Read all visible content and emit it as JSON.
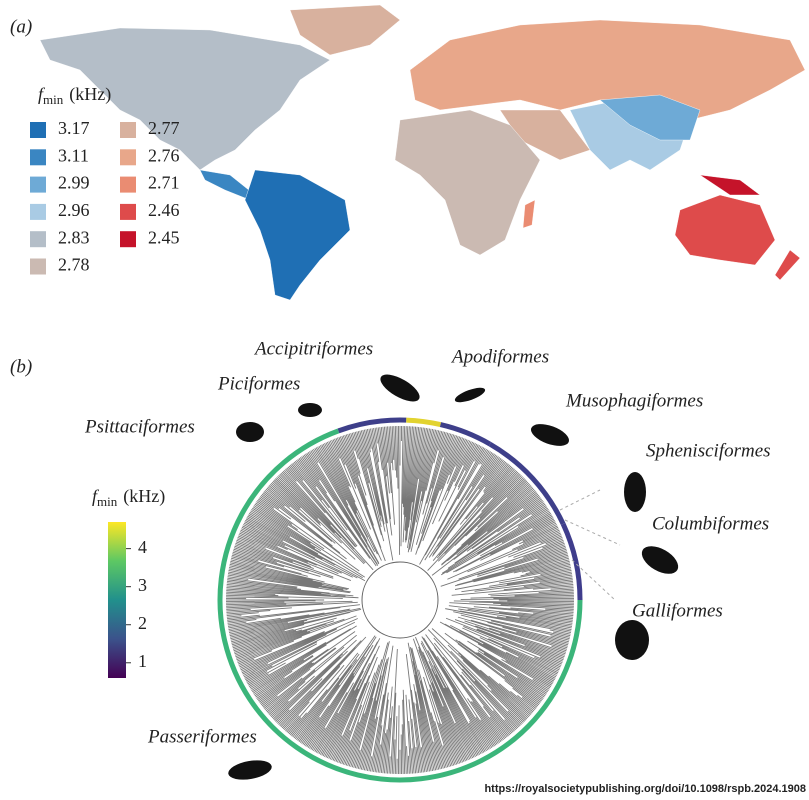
{
  "panel_a": {
    "label": "(a)",
    "legend": {
      "title": {
        "symbol": "f",
        "subscript": "min",
        "unit": "(kHz)"
      },
      "entries": [
        {
          "value": 3.17,
          "color": "#1f6fb4"
        },
        {
          "value": 3.11,
          "color": "#3a86c2"
        },
        {
          "value": 2.99,
          "color": "#6eaad6"
        },
        {
          "value": 2.96,
          "color": "#a9cbe4"
        },
        {
          "value": 2.83,
          "color": "#b4bec8"
        },
        {
          "value": 2.78,
          "color": "#cbbab2"
        },
        {
          "value": 2.77,
          "color": "#d8b19e"
        },
        {
          "value": 2.76,
          "color": "#e8a78a"
        },
        {
          "value": 2.71,
          "color": "#ea8c72"
        },
        {
          "value": 2.46,
          "color": "#de4b4b"
        },
        {
          "value": 2.45,
          "color": "#c5132a"
        }
      ]
    }
  },
  "panel_b": {
    "label": "(b)",
    "colorbar": {
      "title": {
        "symbol": "f",
        "subscript": "min",
        "unit": "(kHz)"
      },
      "range": [
        0.6,
        4.7
      ],
      "ticks": [
        1,
        2,
        3,
        4
      ]
    },
    "orders": [
      "Accipitriformes",
      "Apodiformes",
      "Piciformes",
      "Musophagiformes",
      "Psittaciformes",
      "Sphenisciformes",
      "Columbiformes",
      "Galliformes",
      "Passeriformes"
    ]
  },
  "source": "https://royalsocietypublishing.org/doi/10.1098/rspb.2024.1908"
}
